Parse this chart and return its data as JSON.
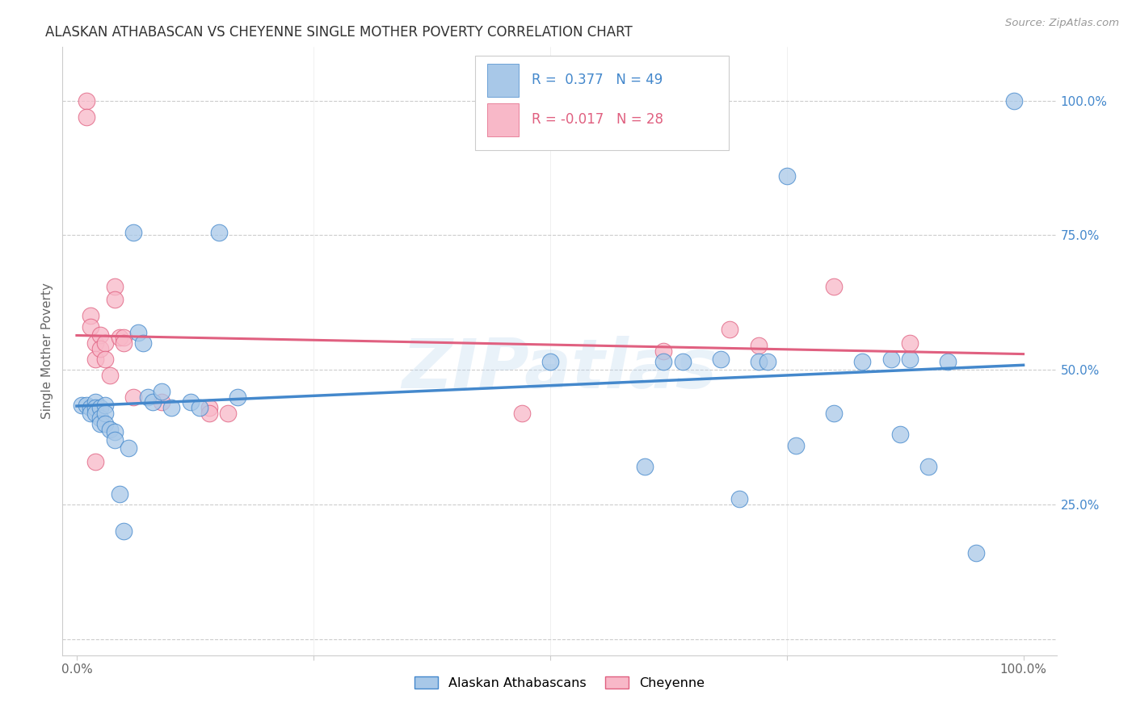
{
  "title": "ALASKAN ATHABASCAN VS CHEYENNE SINGLE MOTHER POVERTY CORRELATION CHART",
  "source": "Source: ZipAtlas.com",
  "ylabel": "Single Mother Poverty",
  "legend_label_blue": "Alaskan Athabascans",
  "legend_label_pink": "Cheyenne",
  "R_blue": 0.377,
  "N_blue": 49,
  "R_pink": -0.017,
  "N_pink": 28,
  "blue_color": "#a8c8e8",
  "pink_color": "#f8b8c8",
  "blue_line_color": "#4488cc",
  "pink_line_color": "#e06080",
  "watermark": "ZIPatlas",
  "blue_x": [
    0.005,
    0.01,
    0.015,
    0.015,
    0.02,
    0.02,
    0.02,
    0.025,
    0.025,
    0.025,
    0.03,
    0.03,
    0.03,
    0.035,
    0.04,
    0.04,
    0.045,
    0.05,
    0.055,
    0.06,
    0.065,
    0.07,
    0.075,
    0.08,
    0.09,
    0.1,
    0.12,
    0.13,
    0.15,
    0.17,
    0.5,
    0.6,
    0.62,
    0.64,
    0.68,
    0.7,
    0.72,
    0.73,
    0.75,
    0.76,
    0.8,
    0.83,
    0.86,
    0.87,
    0.88,
    0.9,
    0.92,
    0.95,
    0.99
  ],
  "blue_y": [
    0.435,
    0.435,
    0.43,
    0.42,
    0.44,
    0.43,
    0.42,
    0.43,
    0.41,
    0.4,
    0.435,
    0.42,
    0.4,
    0.39,
    0.385,
    0.37,
    0.27,
    0.2,
    0.355,
    0.755,
    0.57,
    0.55,
    0.45,
    0.44,
    0.46,
    0.43,
    0.44,
    0.43,
    0.755,
    0.45,
    0.515,
    0.32,
    0.515,
    0.515,
    0.52,
    0.26,
    0.515,
    0.515,
    0.86,
    0.36,
    0.42,
    0.515,
    0.52,
    0.38,
    0.52,
    0.32,
    0.515,
    0.16,
    1.0
  ],
  "pink_x": [
    0.01,
    0.01,
    0.015,
    0.015,
    0.02,
    0.02,
    0.02,
    0.025,
    0.025,
    0.03,
    0.03,
    0.035,
    0.04,
    0.04,
    0.045,
    0.05,
    0.05,
    0.06,
    0.09,
    0.14,
    0.14,
    0.16,
    0.47,
    0.62,
    0.69,
    0.72,
    0.8,
    0.88
  ],
  "pink_y": [
    1.0,
    0.97,
    0.6,
    0.58,
    0.55,
    0.52,
    0.33,
    0.565,
    0.54,
    0.55,
    0.52,
    0.49,
    0.655,
    0.63,
    0.56,
    0.56,
    0.55,
    0.45,
    0.44,
    0.43,
    0.42,
    0.42,
    0.42,
    0.535,
    0.575,
    0.545,
    0.655,
    0.55
  ],
  "ytick_positions": [
    0.0,
    0.25,
    0.5,
    0.75,
    1.0
  ],
  "ytick_labels_right": [
    "",
    "25.0%",
    "50.0%",
    "75.0%",
    "100.0%"
  ],
  "background_color": "#ffffff",
  "grid_color": "#cccccc"
}
